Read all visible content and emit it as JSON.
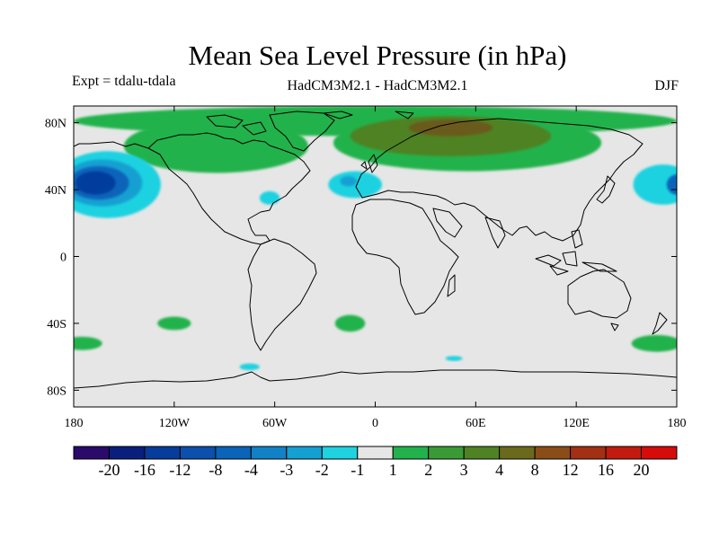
{
  "header": {
    "title": "Mean Sea Level Pressure (in hPa)",
    "experiment": "Expt = tdalu-tdala",
    "models": "HadCM3M2.1 - HadCM3M2.1",
    "season": "DJF"
  },
  "map": {
    "background_color": "#e6e6e6",
    "lon_range": [
      -180,
      180
    ],
    "lat_range": [
      -90,
      90
    ],
    "x_ticks": [
      {
        "lon": -180,
        "label": "180"
      },
      {
        "lon": -120,
        "label": "120W"
      },
      {
        "lon": -60,
        "label": "60W"
      },
      {
        "lon": 0,
        "label": "0"
      },
      {
        "lon": 60,
        "label": "60E"
      },
      {
        "lon": 120,
        "label": "120E"
      },
      {
        "lon": 180,
        "label": "180"
      }
    ],
    "y_ticks": [
      {
        "lat": 80,
        "label": "80N"
      },
      {
        "lat": 40,
        "label": "40N"
      },
      {
        "lat": 0,
        "label": "0"
      },
      {
        "lat": -40,
        "label": "40S"
      },
      {
        "lat": -80,
        "label": "80S"
      }
    ],
    "anomalies": [
      {
        "name": "arctic-high",
        "color": "#22b24c",
        "lon": 0,
        "lat": 81,
        "rlon": 180,
        "rlat": 9
      },
      {
        "name": "north-america-high",
        "color": "#22b24c",
        "lon": -95,
        "lat": 66,
        "rlon": 55,
        "rlat": 16
      },
      {
        "name": "eurasia-high",
        "color": "#22b24c",
        "lon": 55,
        "lat": 68,
        "rlon": 80,
        "rlat": 17
      },
      {
        "name": "eurasia-high-core",
        "color": "#4f8223",
        "lon": 45,
        "lat": 72,
        "rlon": 60,
        "rlat": 12
      },
      {
        "name": "siberia-high-core",
        "color": "#6b5a1c",
        "lon": 45,
        "lat": 77,
        "rlon": 25,
        "rlat": 5
      },
      {
        "name": "pacific-low-outer",
        "color": "#1ed2e0",
        "lon": -160,
        "lat": 43,
        "rlon": 32,
        "rlat": 20
      },
      {
        "name": "pacific-low-1",
        "color": "#14a0d2",
        "lon": -163,
        "lat": 44,
        "rlon": 24,
        "rlat": 14
      },
      {
        "name": "pacific-low-2",
        "color": "#0a64b9",
        "lon": -165,
        "lat": 44,
        "rlon": 18,
        "rlat": 10
      },
      {
        "name": "pacific-low-core",
        "color": "#063c9c",
        "lon": -167,
        "lat": 44,
        "rlon": 12,
        "rlat": 7
      },
      {
        "name": "atlantic-low",
        "color": "#1ed2e0",
        "lon": -12,
        "lat": 43,
        "rlon": 16,
        "rlat": 8
      },
      {
        "name": "atlantic-low-core",
        "color": "#14a0d2",
        "lon": -16,
        "lat": 45,
        "rlon": 5,
        "rlat": 3
      },
      {
        "name": "mid-atlantic-low",
        "color": "#1ed2e0",
        "lon": -63,
        "lat": 35,
        "rlon": 6,
        "rlat": 4
      },
      {
        "name": "west-pacific-low",
        "color": "#1ed2e0",
        "lon": 172,
        "lat": 43,
        "rlon": 18,
        "rlat": 12
      },
      {
        "name": "west-pacific-low-core",
        "color": "#0a64b9",
        "lon": 180,
        "lat": 43,
        "rlon": 6,
        "rlat": 6
      },
      {
        "name": "south-pacific-high",
        "color": "#22b24c",
        "lon": -120,
        "lat": -40,
        "rlon": 10,
        "rlat": 4
      },
      {
        "name": "south-atlantic-high",
        "color": "#22b24c",
        "lon": -15,
        "lat": -40,
        "rlon": 9,
        "rlat": 5
      },
      {
        "name": "south-east-pacific-high",
        "color": "#22b24c",
        "lon": -175,
        "lat": -52,
        "rlon": 12,
        "rlat": 4
      },
      {
        "name": "south-west-pacific-high",
        "color": "#22b24c",
        "lon": 168,
        "lat": -52,
        "rlon": 15,
        "rlat": 5
      },
      {
        "name": "drake-passage-low",
        "color": "#1ed2e0",
        "lon": -75,
        "lat": -66,
        "rlon": 6,
        "rlat": 2
      },
      {
        "name": "southern-ocean-low",
        "color": "#1ed2e0",
        "lon": 47,
        "lat": -61,
        "rlon": 5,
        "rlat": 1.5
      }
    ]
  },
  "colorbar": {
    "colors": [
      "#2a0a6a",
      "#0a1e7e",
      "#063c9c",
      "#0a50ac",
      "#0a64b9",
      "#1282c8",
      "#14a0d2",
      "#1ed2e0",
      "#e6e6e6",
      "#22b24c",
      "#3a9a36",
      "#4f8223",
      "#6b6a1c",
      "#8a4d17",
      "#a33012",
      "#c21a0e",
      "#d80b0b"
    ],
    "labels": [
      "-20",
      "-16",
      "-12",
      "-8",
      "-4",
      "-3",
      "-2",
      "-1",
      "1",
      "2",
      "3",
      "4",
      "8",
      "12",
      "16",
      "20"
    ]
  }
}
